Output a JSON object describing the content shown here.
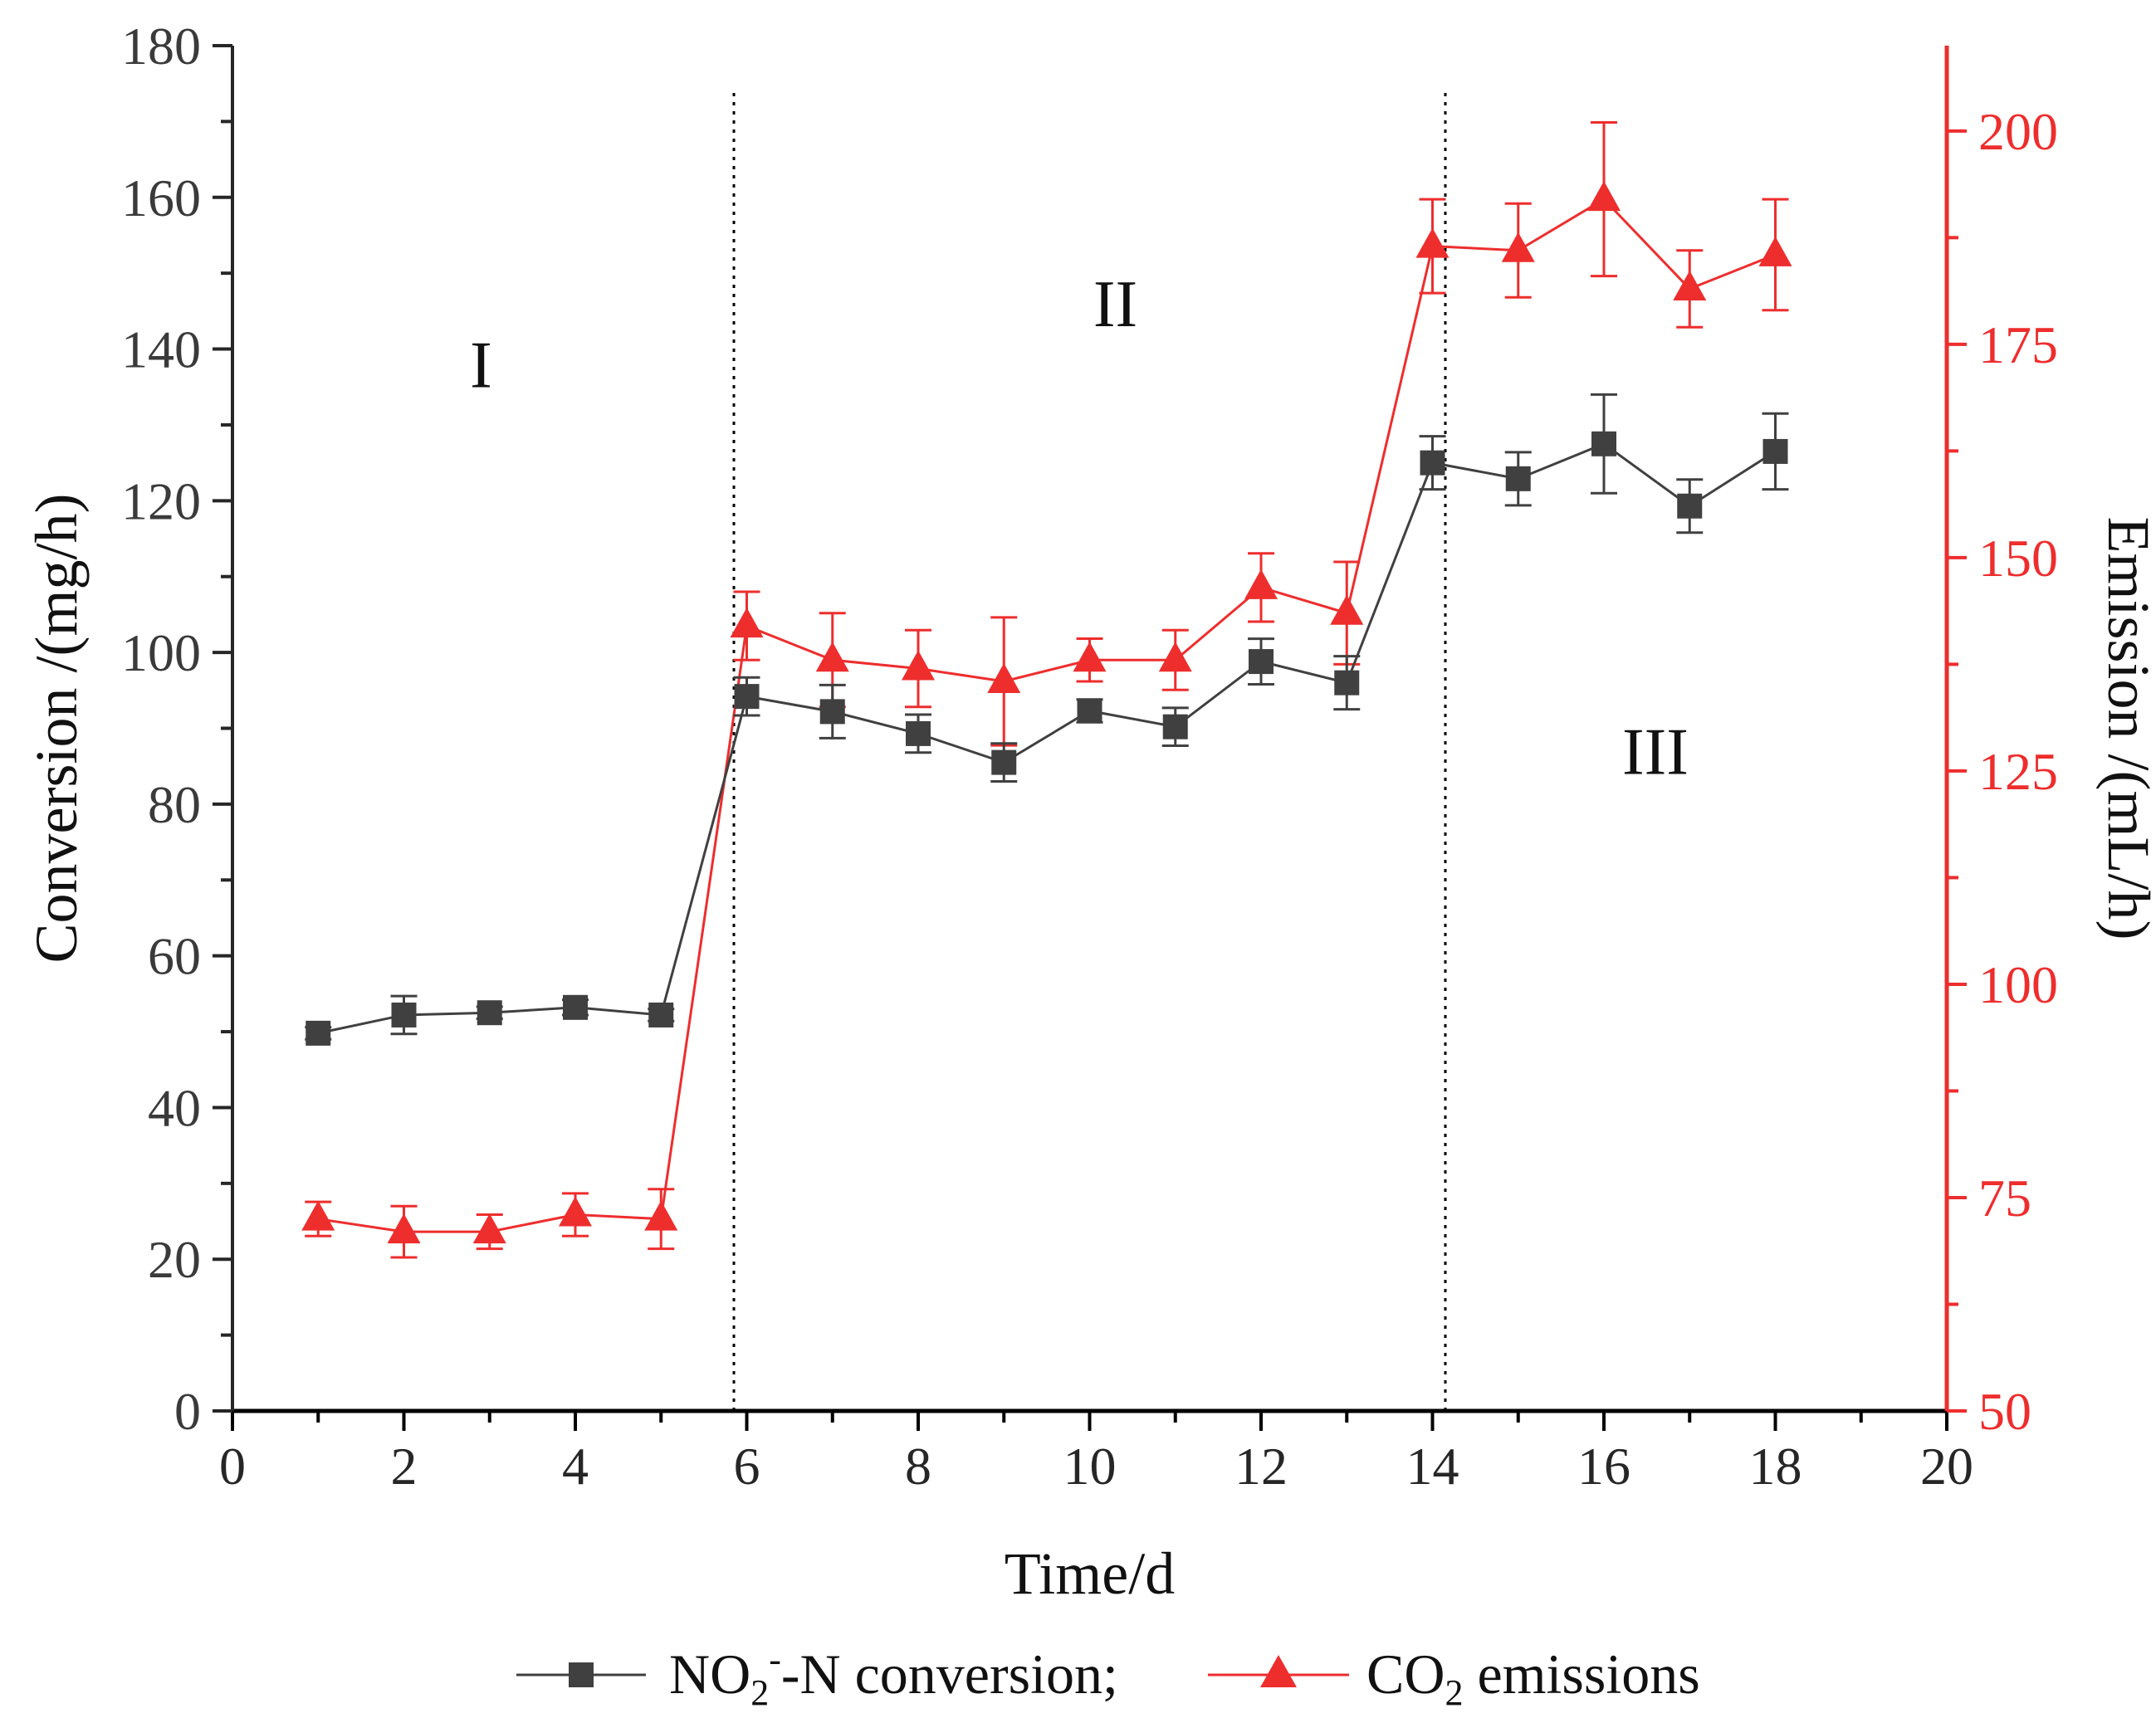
{
  "chart_data": {
    "type": "line",
    "title": "",
    "xlabel": "Time/d",
    "ylabel_left": "Conversion /(mg/h)",
    "ylabel_right": "Emission /(mL/h)",
    "xlim": [
      0,
      20
    ],
    "ylim_left": [
      0,
      180
    ],
    "ylim_right": [
      50,
      210
    ],
    "x_ticks": [
      0,
      2,
      4,
      6,
      8,
      10,
      12,
      14,
      16,
      18,
      20
    ],
    "y_left_ticks": [
      0,
      20,
      40,
      60,
      80,
      100,
      120,
      140,
      160,
      180
    ],
    "y_right_ticks": [
      50,
      75,
      100,
      125,
      150,
      175,
      200
    ],
    "grid": false,
    "legend_position": "bottom-center",
    "phase_dividers": [
      5.85,
      14.15
    ],
    "region_labels": [
      {
        "label": "I",
        "x": 2.9,
        "y": 135
      },
      {
        "label": "II",
        "x": 10.3,
        "y": 143
      },
      {
        "label": "III",
        "x": 16.6,
        "y": 84
      }
    ],
    "series": [
      {
        "name": "NO2--N conversion",
        "legend_main": "NO",
        "legend_sub": "2",
        "legend_sup": "-",
        "legend_rest": "-N conversion;",
        "axis": "left",
        "color": "#404040",
        "marker": "square",
        "x": [
          1,
          2,
          3,
          4,
          5,
          6,
          7,
          8,
          9,
          10,
          11,
          12,
          13,
          14,
          15,
          16,
          17,
          18
        ],
        "y": [
          49.8,
          52.2,
          52.5,
          53.2,
          52.2,
          94.2,
          92.2,
          89.3,
          85.5,
          92.3,
          90.2,
          98.8,
          96.0,
          125.0,
          122.9,
          127.5,
          119.3,
          126.5
        ],
        "err": [
          0.8,
          2.5,
          0.8,
          1.0,
          0.8,
          2.5,
          3.5,
          2.5,
          2.5,
          1.5,
          2.5,
          3.0,
          3.5,
          3.5,
          3.5,
          6.5,
          3.5,
          5.0
        ]
      },
      {
        "name": "CO2 emissions",
        "legend_main": "CO",
        "legend_sub": "2",
        "legend_rest": " emissions",
        "axis": "right",
        "color": "#ee2d2d",
        "marker": "triangle",
        "x": [
          1,
          2,
          3,
          4,
          5,
          6,
          7,
          8,
          9,
          10,
          11,
          12,
          13,
          14,
          15,
          16,
          17,
          18
        ],
        "y": [
          72.5,
          71.0,
          71.0,
          73.0,
          72.5,
          142.0,
          138.0,
          137.0,
          135.5,
          138.0,
          138.0,
          146.5,
          143.5,
          186.5,
          186.0,
          192.0,
          181.5,
          185.5
        ],
        "err": [
          2.0,
          3.0,
          2.0,
          2.5,
          3.5,
          4.0,
          5.5,
          4.5,
          7.5,
          2.5,
          3.5,
          4.0,
          6.0,
          5.5,
          5.5,
          9.0,
          4.5,
          6.5
        ]
      }
    ]
  }
}
